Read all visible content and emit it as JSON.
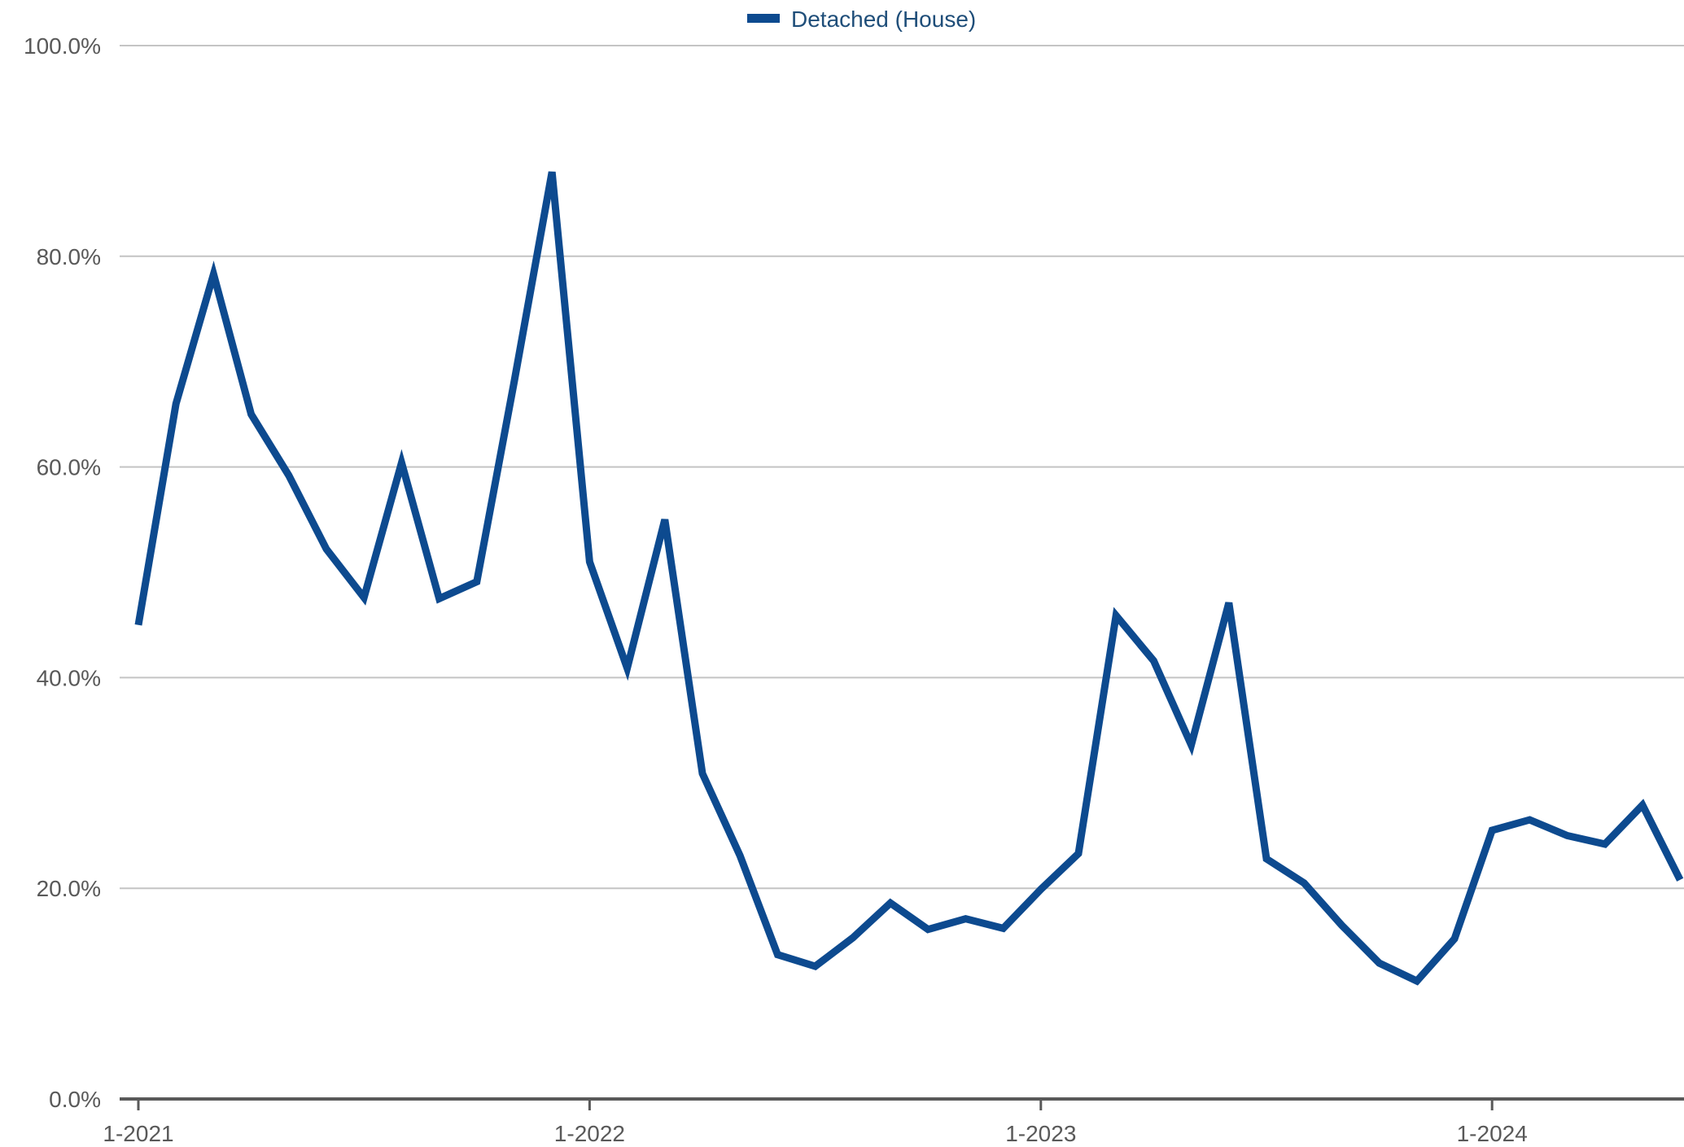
{
  "chart_data": {
    "type": "line",
    "title": "",
    "xlabel": "",
    "ylabel": "",
    "legend": {
      "position": "top-center"
    },
    "grid": true,
    "ylim": [
      0,
      100
    ],
    "y_ticks": [
      {
        "value": 0,
        "label": "0.0%"
      },
      {
        "value": 20,
        "label": "20.0%"
      },
      {
        "value": 40,
        "label": "40.0%"
      },
      {
        "value": 60,
        "label": "60.0%"
      },
      {
        "value": 80,
        "label": "80.0%"
      },
      {
        "value": 100,
        "label": "100.0%"
      }
    ],
    "x_ticks": [
      {
        "value": "2021-01",
        "label": "1-2021"
      },
      {
        "value": "2022-01",
        "label": "1-2022"
      },
      {
        "value": "2023-01",
        "label": "1-2023"
      },
      {
        "value": "2024-01",
        "label": "1-2024"
      }
    ],
    "x": [
      "2021-01",
      "2021-02",
      "2021-03",
      "2021-04",
      "2021-05",
      "2021-06",
      "2021-07",
      "2021-08",
      "2021-09",
      "2021-10",
      "2021-11",
      "2021-12",
      "2022-01",
      "2022-02",
      "2022-03",
      "2022-04",
      "2022-05",
      "2022-06",
      "2022-07",
      "2022-08",
      "2022-09",
      "2022-10",
      "2022-11",
      "2022-12",
      "2023-01",
      "2023-02",
      "2023-03",
      "2023-04",
      "2023-05",
      "2023-06",
      "2023-07",
      "2023-08",
      "2023-09",
      "2023-10",
      "2023-11",
      "2023-12",
      "2024-01",
      "2024-02",
      "2024-03",
      "2024-04",
      "2024-05",
      "2024-06"
    ],
    "series": [
      {
        "name": "Detached (House)",
        "color": "#0d4a8f",
        "values": [
          45.0,
          66.0,
          78.3,
          65.0,
          59.2,
          52.2,
          47.6,
          60.4,
          47.5,
          49.1,
          68.2,
          88.0,
          51.0,
          40.9,
          55.0,
          30.9,
          23.1,
          13.7,
          12.6,
          15.3,
          18.6,
          16.1,
          17.1,
          16.2,
          19.9,
          23.3,
          45.9,
          41.6,
          33.6,
          47.1,
          22.8,
          20.5,
          16.5,
          12.9,
          11.2,
          15.2,
          25.5,
          26.5,
          25.0,
          24.2,
          27.9,
          20.8
        ]
      }
    ]
  }
}
